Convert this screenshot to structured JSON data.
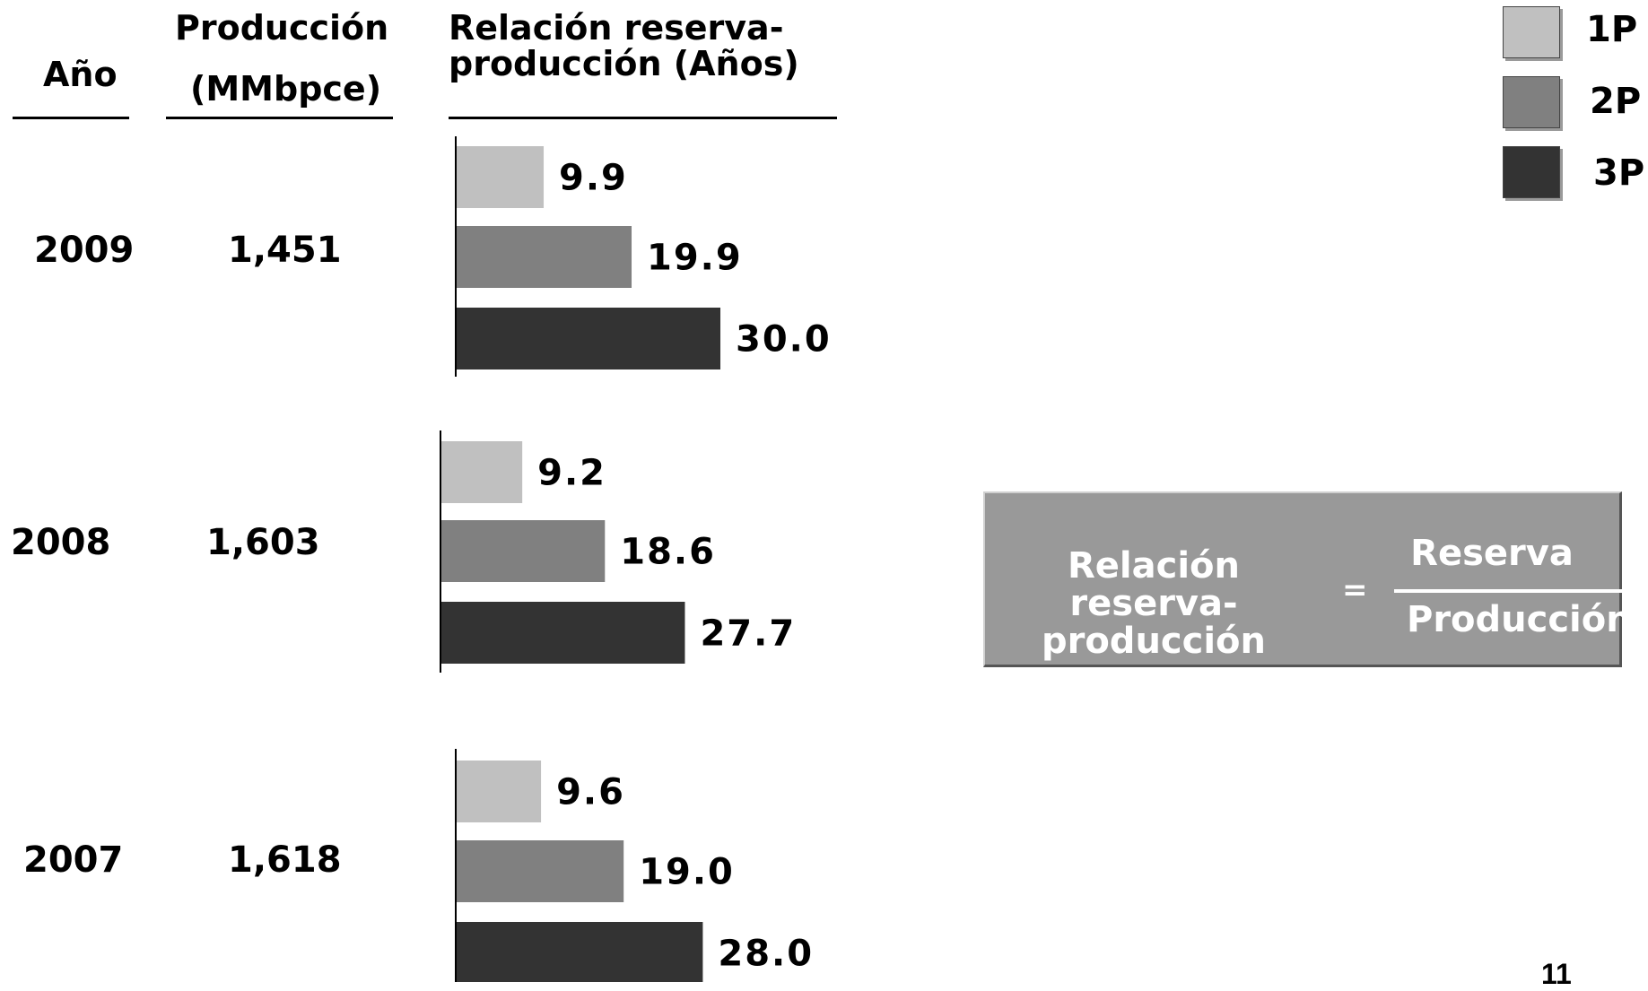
{
  "headers": {
    "year": "Año",
    "production_line1": "Producción",
    "production_line2": "(MMbpce)",
    "ratio_line1": "Relación reserva-",
    "ratio_line2": "producción (Años)"
  },
  "rows": [
    {
      "year": "2009",
      "production": "1,451"
    },
    {
      "year": "2008",
      "production": "1,603"
    },
    {
      "year": "2007",
      "production": "1,618"
    }
  ],
  "chart_data": {
    "type": "bar",
    "orientation": "horizontal",
    "categories": [
      "2009",
      "2008",
      "2007"
    ],
    "series": [
      {
        "name": "1P",
        "values": [
          9.9,
          9.2,
          9.6
        ],
        "labels": [
          "9.9",
          "9.2",
          "9.6"
        ],
        "color": "#c0c0c0"
      },
      {
        "name": "2P",
        "values": [
          19.9,
          18.6,
          19.0
        ],
        "labels": [
          "19.9",
          "18.6",
          "19.0"
        ],
        "color": "#808080"
      },
      {
        "name": "3P",
        "values": [
          30.0,
          27.7,
          28.0
        ],
        "labels": [
          "30.0",
          "27.7",
          "28.0"
        ],
        "color": "#333333"
      }
    ],
    "xlim": [
      0,
      30
    ],
    "legend_position": "top-right"
  },
  "legend": [
    {
      "label": "1P",
      "color": "#c0c0c0"
    },
    {
      "label": "2P",
      "color": "#808080"
    },
    {
      "label": "3P",
      "color": "#333333"
    }
  ],
  "formula": {
    "lhs_line1": "Relación reserva-",
    "lhs_line2": "producción",
    "equals": "=",
    "numerator": "Reserva",
    "denominator": "Producción"
  },
  "page_number": "11"
}
